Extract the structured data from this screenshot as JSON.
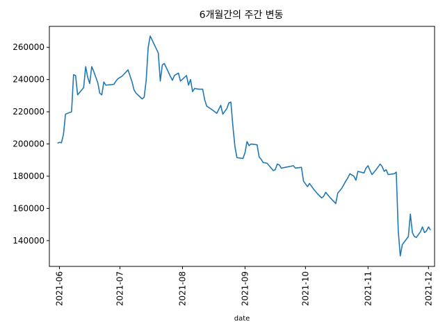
{
  "chart_data": {
    "type": "line",
    "title": "6개월간의 주간 변동",
    "xlabel": "date",
    "ylabel": "",
    "grid": false,
    "legend": "none",
    "xlim": [
      "2021-05-27",
      "2021-12-04"
    ],
    "ylim": [
      124000,
      273000
    ],
    "x_ticks": [
      "2021-06-01",
      "2021-07-01",
      "2021-08-01",
      "2021-09-01",
      "2021-10-01",
      "2021-11-01",
      "2021-12-01"
    ],
    "x_tick_labels": [
      "2021-06",
      "2021-07",
      "2021-08",
      "2021-09",
      "2021-10",
      "2021-11",
      "2021-12"
    ],
    "y_ticks": [
      140000,
      160000,
      180000,
      200000,
      220000,
      240000,
      260000
    ],
    "y_tick_labels": [
      "140000",
      "160000",
      "180000",
      "200000",
      "220000",
      "240000",
      "260000"
    ],
    "series": [
      {
        "color": "#1f77b4",
        "points": [
          [
            "2021-05-31",
            200500
          ],
          [
            "2021-06-01",
            201000
          ],
          [
            "2021-06-02",
            200800
          ],
          [
            "2021-06-03",
            206000
          ],
          [
            "2021-06-04",
            218500
          ],
          [
            "2021-06-07",
            220000
          ],
          [
            "2021-06-08",
            243000
          ],
          [
            "2021-06-09",
            242500
          ],
          [
            "2021-06-10",
            230500
          ],
          [
            "2021-06-11",
            232000
          ],
          [
            "2021-06-13",
            235000
          ],
          [
            "2021-06-14",
            248000
          ],
          [
            "2021-06-15",
            241500
          ],
          [
            "2021-06-16",
            237500
          ],
          [
            "2021-06-17",
            248000
          ],
          [
            "2021-06-18",
            245000
          ],
          [
            "2021-06-20",
            238000
          ],
          [
            "2021-06-21",
            231500
          ],
          [
            "2021-06-22",
            230500
          ],
          [
            "2021-06-23",
            238500
          ],
          [
            "2021-06-24",
            236500
          ],
          [
            "2021-06-28",
            237000
          ],
          [
            "2021-06-29",
            239000
          ],
          [
            "2021-06-30",
            240500
          ],
          [
            "2021-07-02",
            242000
          ],
          [
            "2021-07-05",
            246000
          ],
          [
            "2021-07-07",
            238500
          ],
          [
            "2021-07-08",
            233500
          ],
          [
            "2021-07-09",
            231500
          ],
          [
            "2021-07-12",
            228000
          ],
          [
            "2021-07-13",
            229000
          ],
          [
            "2021-07-14",
            239500
          ],
          [
            "2021-07-15",
            260000
          ],
          [
            "2021-07-16",
            267000
          ],
          [
            "2021-07-20",
            256500
          ],
          [
            "2021-07-21",
            239000
          ],
          [
            "2021-07-22",
            249000
          ],
          [
            "2021-07-23",
            250000
          ],
          [
            "2021-07-26",
            242000
          ],
          [
            "2021-07-27",
            239500
          ],
          [
            "2021-07-28",
            242500
          ],
          [
            "2021-07-30",
            244000
          ],
          [
            "2021-07-31",
            239000
          ],
          [
            "2021-08-03",
            242500
          ],
          [
            "2021-08-04",
            236500
          ],
          [
            "2021-08-05",
            240000
          ],
          [
            "2021-08-06",
            232500
          ],
          [
            "2021-08-07",
            234500
          ],
          [
            "2021-08-09",
            234000
          ],
          [
            "2021-08-11",
            234000
          ],
          [
            "2021-08-12",
            227500
          ],
          [
            "2021-08-13",
            223500
          ],
          [
            "2021-08-16",
            221000
          ],
          [
            "2021-08-18",
            219000
          ],
          [
            "2021-08-20",
            224000
          ],
          [
            "2021-08-21",
            218500
          ],
          [
            "2021-08-23",
            222000
          ],
          [
            "2021-08-24",
            225500
          ],
          [
            "2021-08-25",
            226000
          ],
          [
            "2021-08-26",
            211000
          ],
          [
            "2021-08-27",
            198500
          ],
          [
            "2021-08-28",
            191500
          ],
          [
            "2021-08-31",
            191000
          ],
          [
            "2021-09-01",
            194500
          ],
          [
            "2021-09-02",
            201500
          ],
          [
            "2021-09-03",
            199000
          ],
          [
            "2021-09-04",
            200000
          ],
          [
            "2021-09-07",
            199500
          ],
          [
            "2021-09-08",
            192000
          ],
          [
            "2021-09-09",
            190500
          ],
          [
            "2021-09-10",
            188500
          ],
          [
            "2021-09-12",
            188000
          ],
          [
            "2021-09-14",
            185000
          ],
          [
            "2021-09-15",
            183500
          ],
          [
            "2021-09-16",
            184000
          ],
          [
            "2021-09-17",
            187500
          ],
          [
            "2021-09-18",
            187000
          ],
          [
            "2021-09-19",
            185000
          ],
          [
            "2021-09-21",
            185500
          ],
          [
            "2021-09-25",
            186500
          ],
          [
            "2021-09-26",
            185000
          ],
          [
            "2021-09-29",
            185500
          ],
          [
            "2021-09-30",
            177000
          ],
          [
            "2021-10-02",
            173500
          ],
          [
            "2021-10-03",
            175500
          ],
          [
            "2021-10-05",
            172000
          ],
          [
            "2021-10-07",
            169000
          ],
          [
            "2021-10-09",
            166500
          ],
          [
            "2021-10-10",
            167500
          ],
          [
            "2021-10-11",
            170000
          ],
          [
            "2021-10-13",
            167000
          ],
          [
            "2021-10-16",
            163000
          ],
          [
            "2021-10-17",
            169500
          ],
          [
            "2021-10-18",
            171000
          ],
          [
            "2021-10-19",
            172500
          ],
          [
            "2021-10-21",
            177000
          ],
          [
            "2021-10-22",
            179000
          ],
          [
            "2021-10-23",
            181500
          ],
          [
            "2021-10-25",
            180000
          ],
          [
            "2021-10-26",
            177500
          ],
          [
            "2021-10-27",
            183000
          ],
          [
            "2021-10-30",
            182000
          ],
          [
            "2021-10-31",
            185000
          ],
          [
            "2021-11-01",
            186500
          ],
          [
            "2021-11-02",
            183500
          ],
          [
            "2021-11-03",
            181000
          ],
          [
            "2021-11-05",
            184000
          ],
          [
            "2021-11-07",
            187500
          ],
          [
            "2021-11-08",
            186000
          ],
          [
            "2021-11-09",
            183000
          ],
          [
            "2021-11-10",
            184000
          ],
          [
            "2021-11-11",
            181000
          ],
          [
            "2021-11-14",
            181500
          ],
          [
            "2021-11-15",
            182500
          ],
          [
            "2021-11-16",
            146000
          ],
          [
            "2021-11-17",
            130500
          ],
          [
            "2021-11-18",
            137500
          ],
          [
            "2021-11-21",
            142500
          ],
          [
            "2021-11-22",
            156500
          ],
          [
            "2021-11-23",
            145000
          ],
          [
            "2021-11-24",
            142500
          ],
          [
            "2021-11-25",
            142000
          ],
          [
            "2021-11-27",
            145500
          ],
          [
            "2021-11-28",
            148500
          ],
          [
            "2021-11-29",
            145000
          ],
          [
            "2021-11-30",
            146000
          ],
          [
            "2021-12-01",
            148500
          ],
          [
            "2021-12-02",
            146500
          ]
        ]
      }
    ]
  }
}
